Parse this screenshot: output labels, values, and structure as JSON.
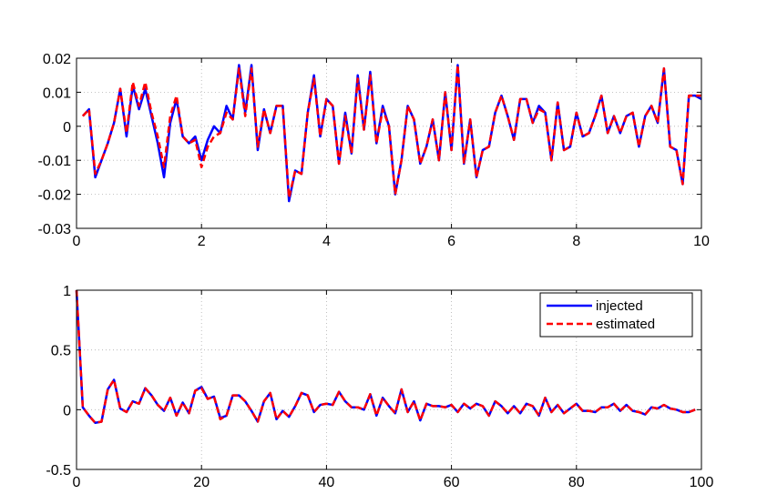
{
  "chart_data": [
    {
      "type": "line",
      "title": "",
      "xlabel": "",
      "ylabel": "",
      "xlim": [
        0,
        10
      ],
      "ylim": [
        -0.03,
        0.02
      ],
      "grid": true,
      "xticks": [
        0,
        2,
        4,
        6,
        8,
        10
      ],
      "yticks": [
        -0.03,
        -0.02,
        -0.01,
        0,
        0.01,
        0.02
      ],
      "xtick_labels": [
        "0",
        "2",
        "4",
        "6",
        "8",
        "10"
      ],
      "ytick_labels": [
        "-0.03",
        "-0.02",
        "-0.01",
        "0",
        "0.01",
        "0.02"
      ],
      "x": [
        0.1,
        0.2,
        0.3,
        0.4,
        0.5,
        0.6,
        0.7,
        0.8,
        0.9,
        1.0,
        1.1,
        1.2,
        1.3,
        1.4,
        1.5,
        1.6,
        1.7,
        1.8,
        1.9,
        2.0,
        2.1,
        2.2,
        2.3,
        2.4,
        2.5,
        2.6,
        2.7,
        2.8,
        2.9,
        3.0,
        3.1,
        3.2,
        3.3,
        3.4,
        3.5,
        3.6,
        3.7,
        3.8,
        3.9,
        4.0,
        4.1,
        4.2,
        4.3,
        4.4,
        4.5,
        4.6,
        4.7,
        4.8,
        4.9,
        5.0,
        5.1,
        5.2,
        5.3,
        5.4,
        5.5,
        5.6,
        5.7,
        5.8,
        5.9,
        6.0,
        6.1,
        6.2,
        6.3,
        6.4,
        6.5,
        6.6,
        6.7,
        6.8,
        6.9,
        7.0,
        7.1,
        7.2,
        7.3,
        7.4,
        7.5,
        7.6,
        7.7,
        7.8,
        7.9,
        8.0,
        8.1,
        8.2,
        8.3,
        8.4,
        8.5,
        8.6,
        8.7,
        8.8,
        8.9,
        9.0,
        9.1,
        9.2,
        9.3,
        9.4,
        9.5,
        9.6,
        9.7,
        9.8,
        9.9,
        10.0
      ],
      "series": [
        {
          "name": "",
          "color": "#0000ff",
          "style": "solid",
          "values": [
            0.003,
            0.005,
            -0.015,
            -0.01,
            -0.005,
            0.001,
            0.011,
            -0.003,
            0.012,
            0.005,
            0.011,
            0.003,
            -0.005,
            -0.015,
            0.001,
            0.008,
            -0.003,
            -0.005,
            -0.003,
            -0.01,
            -0.004,
            0.0,
            -0.002,
            0.006,
            0.002,
            0.018,
            0.004,
            0.018,
            -0.007,
            0.005,
            -0.002,
            0.006,
            0.006,
            -0.022,
            -0.013,
            -0.014,
            0.004,
            0.015,
            -0.003,
            0.008,
            0.006,
            -0.011,
            0.004,
            -0.008,
            0.015,
            -0.001,
            0.016,
            -0.005,
            0.006,
            0.0,
            -0.02,
            -0.01,
            0.006,
            0.002,
            -0.011,
            -0.006,
            0.002,
            -0.01,
            0.01,
            -0.007,
            0.018,
            -0.011,
            0.002,
            -0.015,
            -0.007,
            -0.006,
            0.004,
            0.009,
            0.003,
            -0.004,
            0.008,
            0.008,
            0.001,
            0.006,
            0.004,
            -0.01,
            0.007,
            -0.007,
            -0.006,
            0.004,
            -0.003,
            -0.002,
            0.003,
            0.009,
            -0.002,
            0.003,
            -0.002,
            0.003,
            0.004,
            -0.006,
            0.003,
            0.006,
            0.001,
            0.017,
            -0.006,
            -0.007,
            -0.017,
            0.009,
            0.009,
            0.008
          ]
        },
        {
          "name": "",
          "color": "#ff0000",
          "style": "dashed",
          "values": [
            0.003,
            0.005,
            -0.014,
            -0.01,
            -0.005,
            0.001,
            0.011,
            -0.002,
            0.013,
            0.006,
            0.013,
            0.004,
            -0.003,
            -0.012,
            0.003,
            0.009,
            -0.003,
            -0.005,
            -0.004,
            -0.012,
            -0.006,
            -0.003,
            -0.002,
            0.004,
            0.002,
            0.017,
            0.003,
            0.017,
            -0.006,
            0.005,
            -0.002,
            0.006,
            0.006,
            -0.021,
            -0.013,
            -0.014,
            0.004,
            0.014,
            -0.003,
            0.008,
            0.006,
            -0.011,
            0.003,
            -0.008,
            0.014,
            -0.001,
            0.015,
            -0.005,
            0.005,
            0.0,
            -0.02,
            -0.01,
            0.006,
            0.002,
            -0.011,
            -0.006,
            0.002,
            -0.01,
            0.01,
            -0.007,
            0.018,
            -0.011,
            0.002,
            -0.015,
            -0.007,
            -0.006,
            0.004,
            0.009,
            0.003,
            -0.004,
            0.008,
            0.008,
            0.001,
            0.005,
            0.004,
            -0.01,
            0.007,
            -0.007,
            -0.006,
            0.004,
            -0.003,
            -0.002,
            0.003,
            0.009,
            -0.002,
            0.003,
            -0.002,
            0.003,
            0.004,
            -0.006,
            0.003,
            0.006,
            0.001,
            0.017,
            -0.006,
            -0.007,
            -0.017,
            0.009,
            0.009,
            0.009
          ]
        }
      ]
    },
    {
      "type": "line",
      "title": "",
      "xlabel": "",
      "ylabel": "",
      "xlim": [
        0,
        100
      ],
      "ylim": [
        -0.5,
        1
      ],
      "grid": true,
      "legend_position": "top-right",
      "xticks": [
        0,
        20,
        40,
        60,
        80,
        100
      ],
      "yticks": [
        -0.5,
        0,
        0.5,
        1
      ],
      "xtick_labels": [
        "0",
        "20",
        "40",
        "60",
        "80",
        "100"
      ],
      "ytick_labels": [
        "-0.5",
        "0",
        "0.5",
        "1"
      ],
      "x": [
        0,
        1,
        2,
        3,
        4,
        5,
        6,
        7,
        8,
        9,
        10,
        11,
        12,
        13,
        14,
        15,
        16,
        17,
        18,
        19,
        20,
        21,
        22,
        23,
        24,
        25,
        26,
        27,
        28,
        29,
        30,
        31,
        32,
        33,
        34,
        35,
        36,
        37,
        38,
        39,
        40,
        41,
        42,
        43,
        44,
        45,
        46,
        47,
        48,
        49,
        50,
        51,
        52,
        53,
        54,
        55,
        56,
        57,
        58,
        59,
        60,
        61,
        62,
        63,
        64,
        65,
        66,
        67,
        68,
        69,
        70,
        71,
        72,
        73,
        74,
        75,
        76,
        77,
        78,
        79,
        80,
        81,
        82,
        83,
        84,
        85,
        86,
        87,
        88,
        89,
        90,
        91,
        92,
        93,
        94,
        95,
        96,
        97,
        98,
        99
      ],
      "series": [
        {
          "name": "injected",
          "color": "#0000ff",
          "style": "solid",
          "values": [
            1.0,
            0.02,
            -0.05,
            -0.11,
            -0.1,
            0.17,
            0.25,
            0.01,
            -0.02,
            0.07,
            0.05,
            0.18,
            0.12,
            0.04,
            -0.01,
            0.1,
            -0.05,
            0.06,
            -0.03,
            0.16,
            0.19,
            0.09,
            0.11,
            -0.07,
            -0.05,
            0.12,
            0.12,
            0.07,
            -0.01,
            -0.1,
            0.07,
            0.14,
            -0.08,
            -0.01,
            -0.06,
            0.03,
            0.14,
            0.12,
            -0.02,
            0.04,
            0.05,
            0.04,
            0.15,
            0.07,
            0.02,
            0.02,
            0.0,
            0.13,
            -0.05,
            0.1,
            0.03,
            -0.03,
            0.17,
            -0.02,
            0.07,
            -0.09,
            0.05,
            0.03,
            0.03,
            0.02,
            0.04,
            -0.02,
            0.05,
            0.01,
            0.05,
            0.03,
            -0.05,
            0.07,
            0.03,
            -0.03,
            0.03,
            -0.03,
            0.05,
            0.03,
            -0.05,
            0.1,
            -0.02,
            0.04,
            -0.03,
            0.01,
            0.05,
            -0.01,
            -0.01,
            -0.02,
            0.02,
            0.02,
            0.05,
            -0.01,
            0.04,
            -0.01,
            -0.02,
            -0.04,
            0.02,
            0.01,
            0.04,
            0.01,
            0.0,
            -0.02,
            -0.02,
            0.0
          ]
        },
        {
          "name": "estimated",
          "color": "#ff0000",
          "style": "dashed",
          "values": [
            1.0,
            0.02,
            -0.05,
            -0.11,
            -0.1,
            0.17,
            0.25,
            0.01,
            -0.02,
            0.07,
            0.05,
            0.18,
            0.12,
            0.04,
            -0.01,
            0.1,
            -0.05,
            0.06,
            -0.03,
            0.16,
            0.18,
            0.09,
            0.11,
            -0.08,
            -0.05,
            0.12,
            0.12,
            0.07,
            -0.01,
            -0.1,
            0.07,
            0.14,
            -0.08,
            -0.01,
            -0.06,
            0.03,
            0.14,
            0.12,
            -0.02,
            0.04,
            0.05,
            0.04,
            0.15,
            0.07,
            0.02,
            0.02,
            0.0,
            0.13,
            -0.05,
            0.1,
            0.03,
            -0.03,
            0.17,
            -0.02,
            0.07,
            -0.09,
            0.05,
            0.03,
            0.03,
            0.02,
            0.04,
            -0.02,
            0.05,
            0.01,
            0.05,
            0.03,
            -0.05,
            0.07,
            0.03,
            -0.03,
            0.03,
            -0.03,
            0.05,
            0.03,
            -0.05,
            0.1,
            -0.02,
            0.04,
            -0.03,
            0.01,
            0.05,
            -0.01,
            -0.01,
            -0.02,
            0.02,
            0.02,
            0.05,
            -0.01,
            0.04,
            -0.01,
            -0.02,
            -0.04,
            0.02,
            0.01,
            0.04,
            0.01,
            0.0,
            -0.02,
            -0.02,
            0.0
          ]
        }
      ]
    }
  ]
}
